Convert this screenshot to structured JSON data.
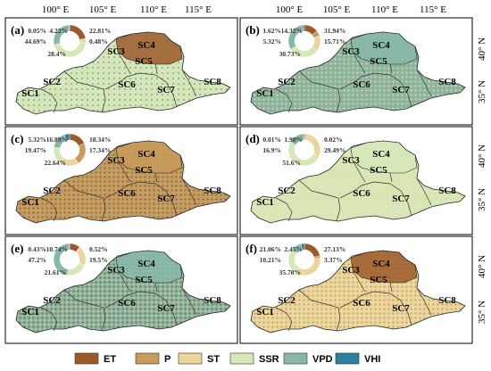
{
  "map": {
    "top_axis_labels": [
      "100° E",
      "105° E",
      "110° E",
      "115° E"
    ],
    "right_axis_labels": [
      "40° N",
      "35° N"
    ],
    "region_labels": [
      "SC1",
      "SC2",
      "SC3",
      "SC4",
      "SC5",
      "SC6",
      "SC7",
      "SC8"
    ],
    "categories": [
      {
        "name": "ET",
        "color": "#9c5a2a"
      },
      {
        "name": "P",
        "color": "#c99b5b"
      },
      {
        "name": "ST",
        "color": "#ecd59a"
      },
      {
        "name": "SSR",
        "color": "#d6e8b8"
      },
      {
        "name": "VPD",
        "color": "#86b8a8"
      },
      {
        "name": "VHI",
        "color": "#2d7f9e"
      }
    ]
  },
  "panels": [
    {
      "id": "a",
      "label": "(a)",
      "dominant": "SSR",
      "pie": [
        {
          "cat": "ET",
          "value": 22.81
        },
        {
          "cat": "P",
          "value": 0.05
        },
        {
          "cat": "ST",
          "value": 4.22
        },
        {
          "cat": "SSR",
          "value": 44.69
        },
        {
          "cat": "VPD",
          "value": 28.4
        },
        {
          "cat": "VHI",
          "value": 0.48
        }
      ],
      "pct_labels": [
        "0.05%",
        "4.22%",
        "22.81%",
        "44.69%",
        "0.48%",
        "28.4%"
      ]
    },
    {
      "id": "b",
      "label": "(b)",
      "dominant": "VPD",
      "pie": [
        {
          "cat": "ET",
          "value": 14.32
        },
        {
          "cat": "P",
          "value": 5.32
        },
        {
          "cat": "ST",
          "value": 15.71
        },
        {
          "cat": "SSR",
          "value": 30.73
        },
        {
          "cat": "VPD",
          "value": 31.94
        },
        {
          "cat": "VHI",
          "value": 1.62
        }
      ],
      "pct_labels": [
        "1.62%",
        "14.32%",
        "31.94%",
        "5.32%",
        "15.71%",
        "30.73%"
      ]
    },
    {
      "id": "c",
      "label": "(c)",
      "dominant": "P",
      "pie": [
        {
          "cat": "ET",
          "value": 18.34
        },
        {
          "cat": "P",
          "value": 22.64
        },
        {
          "cat": "ST",
          "value": 19.47
        },
        {
          "cat": "SSR",
          "value": 17.34
        },
        {
          "cat": "VPD",
          "value": 16.89
        },
        {
          "cat": "VHI",
          "value": 5.32
        }
      ],
      "pct_labels": [
        "5.32%",
        "16.89%",
        "18.34%",
        "19.47%",
        "17.34%",
        "22.64%"
      ]
    },
    {
      "id": "d",
      "label": "(d)",
      "dominant": "SSR",
      "pie": [
        {
          "cat": "ET",
          "value": 0.02
        },
        {
          "cat": "P",
          "value": 1.98
        },
        {
          "cat": "ST",
          "value": 29.49
        },
        {
          "cat": "SSR",
          "value": 51.6
        },
        {
          "cat": "VPD",
          "value": 16.9
        },
        {
          "cat": "VHI",
          "value": 0.01
        }
      ],
      "pct_labels": [
        "0.01%",
        "1.98%",
        "0.02%",
        "16.9%",
        "29.49%",
        "51.6%"
      ]
    },
    {
      "id": "e",
      "label": "(e)",
      "dominant": "VPD",
      "pie": [
        {
          "cat": "ET",
          "value": 10.74
        },
        {
          "cat": "P",
          "value": 0.52
        },
        {
          "cat": "ST",
          "value": 19.5
        },
        {
          "cat": "SSR",
          "value": 21.61
        },
        {
          "cat": "VPD",
          "value": 47.2
        },
        {
          "cat": "VHI",
          "value": 0.43
        }
      ],
      "pct_labels": [
        "0.43%",
        "10.74%",
        "0.52%",
        "47.2%",
        "19.5%",
        "21.61%"
      ]
    },
    {
      "id": "f",
      "label": "(f)",
      "dominant": "ST",
      "pie": [
        {
          "cat": "ET",
          "value": 21.06
        },
        {
          "cat": "P",
          "value": 2.45
        },
        {
          "cat": "ST",
          "value": 35.78
        },
        {
          "cat": "SSR",
          "value": 27.13
        },
        {
          "cat": "VPD",
          "value": 10.21
        },
        {
          "cat": "VHI",
          "value": 3.37
        }
      ],
      "pct_labels": [
        "21.06%",
        "2.45%",
        "27.13%",
        "10.21%",
        "3.37%",
        "35.78%"
      ]
    }
  ]
}
